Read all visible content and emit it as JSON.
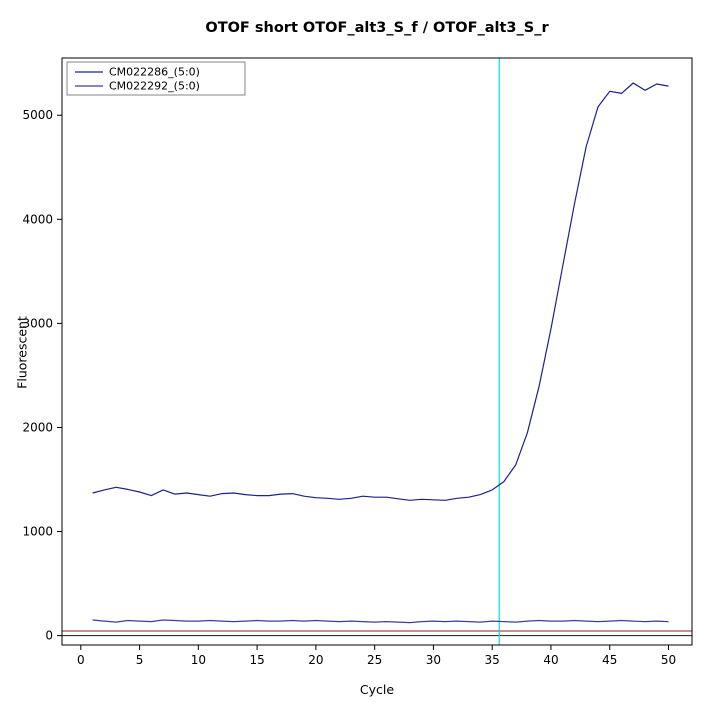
{
  "chart_data": {
    "type": "line",
    "title": "OTOF short OTOF_alt3_S_f / OTOF_alt3_S_r",
    "xlabel": "Cycle",
    "ylabel": "Fluorescent",
    "xlim": [
      -1.6,
      52
    ],
    "ylim": [
      -90,
      5550
    ],
    "x_ticks": [
      0,
      5,
      10,
      15,
      20,
      25,
      30,
      35,
      40,
      45,
      50
    ],
    "y_ticks": [
      0,
      1000,
      2000,
      3000,
      4000,
      5000
    ],
    "grid": false,
    "legend_position": "top-left",
    "x": [
      1,
      2,
      3,
      4,
      5,
      6,
      7,
      8,
      9,
      10,
      11,
      12,
      13,
      14,
      15,
      16,
      17,
      18,
      19,
      20,
      21,
      22,
      23,
      24,
      25,
      26,
      27,
      28,
      29,
      30,
      31,
      32,
      33,
      34,
      35,
      36,
      37,
      38,
      39,
      40,
      41,
      42,
      43,
      44,
      45,
      46,
      47,
      48,
      49,
      50
    ],
    "series": [
      {
        "name": "CM022286_(5:0)",
        "color": "#1f1f8f",
        "values": [
          1370,
          1400,
          1425,
          1405,
          1380,
          1345,
          1400,
          1360,
          1370,
          1355,
          1340,
          1365,
          1370,
          1355,
          1345,
          1345,
          1360,
          1365,
          1340,
          1325,
          1320,
          1310,
          1320,
          1340,
          1330,
          1330,
          1315,
          1300,
          1310,
          1305,
          1300,
          1320,
          1330,
          1355,
          1400,
          1480,
          1640,
          1950,
          2400,
          2950,
          3550,
          4150,
          4700,
          5080,
          5230,
          5210,
          5310,
          5240,
          5300,
          5280
        ]
      },
      {
        "name": "CM022292_(5:0)",
        "color": "#3d3da0",
        "values": [
          150,
          140,
          130,
          145,
          140,
          135,
          150,
          145,
          140,
          140,
          145,
          140,
          135,
          140,
          145,
          140,
          140,
          145,
          140,
          145,
          140,
          135,
          140,
          135,
          130,
          135,
          130,
          125,
          135,
          140,
          135,
          140,
          135,
          130,
          140,
          135,
          130,
          140,
          145,
          140,
          140,
          145,
          140,
          135,
          140,
          145,
          140,
          135,
          140,
          135
        ]
      }
    ],
    "annotations": {
      "ct_vertical_line": {
        "x": 35.6,
        "color": "#00e0e0"
      },
      "threshold_horizontal_line": {
        "y": 45,
        "color": "#8b2020"
      },
      "zero_line": {
        "y": 0,
        "color": "#1a1a1a"
      }
    }
  }
}
